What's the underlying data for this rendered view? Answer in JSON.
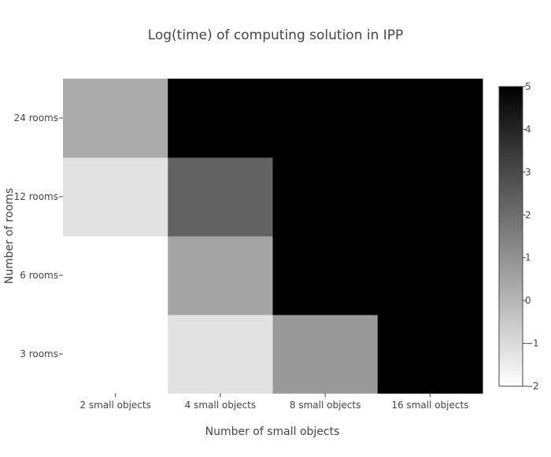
{
  "chart_data": {
    "type": "heatmap",
    "title": "Log(time) of computing solution in IPP",
    "xlabel": "Number of small objects",
    "ylabel": "Number of rooms",
    "x_categories": [
      "2 small objects",
      "4 small objects",
      "8 small objects",
      "16 small objects"
    ],
    "y_categories": [
      "3 rooms",
      "6 rooms",
      "12 rooms",
      "24 rooms"
    ],
    "z": [
      [
        null,
        -1.2,
        0.8,
        5
      ],
      [
        null,
        0.5,
        5,
        5
      ],
      [
        -1.2,
        2.3,
        5,
        5
      ],
      [
        0.3,
        5,
        5,
        5
      ]
    ],
    "zmin": -2,
    "zmax": 5,
    "colorscale": [
      "#ffffff",
      "#000000"
    ],
    "colorbar_ticks": [
      "−2",
      "−1",
      "0",
      "1",
      "2",
      "3",
      "4",
      "5"
    ],
    "colorbar_tick_values": [
      -2,
      -1,
      0,
      1,
      2,
      3,
      4,
      5
    ]
  }
}
